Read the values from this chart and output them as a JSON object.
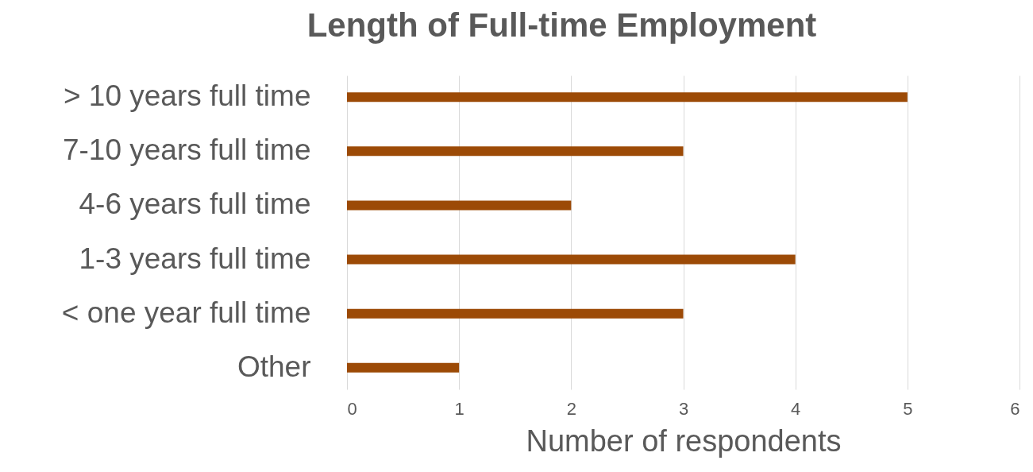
{
  "chart_data": {
    "type": "bar",
    "orientation": "horizontal",
    "title": "Length of Full-time Employment",
    "xlabel": "Number of respondents",
    "categories": [
      "> 10 years full time",
      "7-10 years full time",
      "4-6 years full time",
      "1-3 years full time",
      "< one year full time",
      "Other"
    ],
    "values": [
      5,
      3,
      2,
      4,
      3,
      1
    ],
    "color": "#9c4a06",
    "xlim": [
      0,
      6
    ],
    "xticks": [
      0,
      1,
      2,
      3,
      4,
      5,
      6
    ],
    "grid": "x"
  }
}
